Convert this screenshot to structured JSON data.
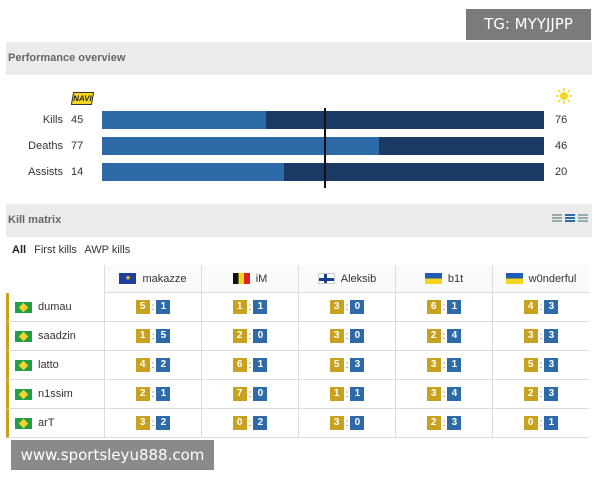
{
  "watermark_top": "TG: MYYJJPP",
  "watermark_bottom": "www.sportsleyu888.com",
  "performance": {
    "title": "Performance overview",
    "left_team_icon": "navi-logo",
    "left_team_logo_text": "NAVI",
    "right_team_icon": "sun-logo",
    "stats": [
      {
        "label": "Kills",
        "left": 45,
        "right": 76
      },
      {
        "label": "Deaths",
        "left": 77,
        "right": 46
      },
      {
        "label": "Assists",
        "left": 14,
        "right": 20
      }
    ],
    "colors": {
      "left_bar": "#2f6aa8",
      "right_bar": "#1a3a64"
    }
  },
  "kill_matrix": {
    "title": "Kill matrix",
    "filters": [
      {
        "label": "All",
        "active": true
      },
      {
        "label": "First kills",
        "active": false
      },
      {
        "label": "AWP kills",
        "active": false
      }
    ],
    "columns": [
      {
        "name": "makazze",
        "flag": "eu-flag"
      },
      {
        "name": "iM",
        "flag": "belgium-flag"
      },
      {
        "name": "Aleksib",
        "flag": "finland-flag"
      },
      {
        "name": "b1t",
        "flag": "ukraine-flag"
      },
      {
        "name": "w0nderful",
        "flag": "ukraine-flag"
      }
    ],
    "rows": [
      {
        "name": "dumau",
        "flag": "brazil-flag",
        "cells": [
          [
            5,
            1
          ],
          [
            1,
            1
          ],
          [
            3,
            0
          ],
          [
            6,
            1
          ],
          [
            4,
            3
          ]
        ]
      },
      {
        "name": "saadzin",
        "flag": "brazil-flag",
        "cells": [
          [
            1,
            5
          ],
          [
            2,
            0
          ],
          [
            3,
            0
          ],
          [
            2,
            4
          ],
          [
            3,
            3
          ]
        ]
      },
      {
        "name": "latto",
        "flag": "brazil-flag",
        "cells": [
          [
            4,
            2
          ],
          [
            6,
            1
          ],
          [
            5,
            3
          ],
          [
            3,
            1
          ],
          [
            5,
            3
          ]
        ]
      },
      {
        "name": "n1ssim",
        "flag": "brazil-flag",
        "cells": [
          [
            2,
            1
          ],
          [
            7,
            0
          ],
          [
            1,
            1
          ],
          [
            3,
            4
          ],
          [
            2,
            3
          ]
        ]
      },
      {
        "name": "arT",
        "flag": "brazil-flag",
        "cells": [
          [
            3,
            2
          ],
          [
            0,
            2
          ],
          [
            3,
            0
          ],
          [
            2,
            3
          ],
          [
            0,
            1
          ]
        ]
      }
    ],
    "colors": {
      "kills": "#c8a21e",
      "deaths": "#2f6aa8"
    }
  }
}
